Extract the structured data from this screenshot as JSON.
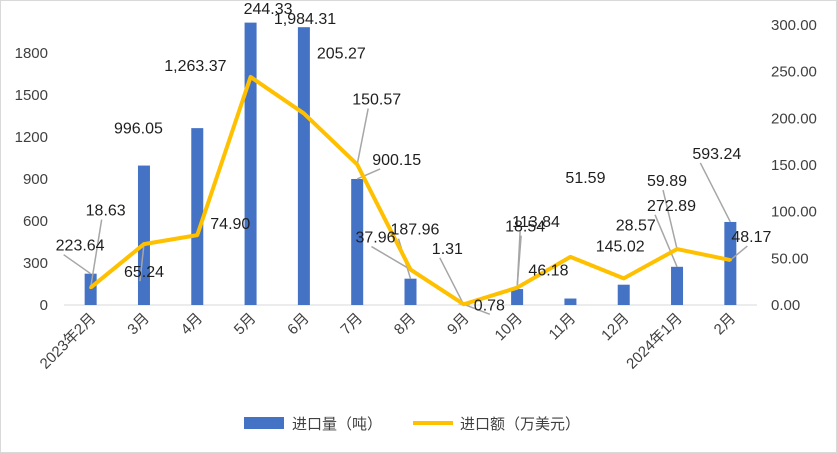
{
  "chart_data": {
    "type": "bar+line",
    "categories": [
      "2023年2月",
      "3月",
      "4月",
      "5月",
      "6月",
      "7月",
      "8月",
      "9月",
      "10月",
      "11月",
      "12月",
      "2024年1月",
      "2月"
    ],
    "series": [
      {
        "name": "进口量（吨）",
        "type": "bar",
        "axis": "left",
        "color": "#4472C4",
        "values": [
          223.64,
          996.05,
          1263.37,
          2017.0,
          1984.31,
          900.15,
          187.96,
          1.31,
          113.84,
          46.18,
          145.02,
          272.89,
          593.24
        ],
        "labels": [
          "223.64",
          "996.05",
          "1,263.37",
          "",
          "1,984.31",
          "900.15",
          "187.96",
          "1.31",
          "113.84",
          "46.18",
          "145.02",
          "272.89",
          "593.24"
        ]
      },
      {
        "name": "进口额（万美元）",
        "type": "line",
        "axis": "right",
        "color": "#FFC000",
        "values": [
          18.63,
          65.24,
          74.9,
          244.33,
          205.27,
          150.57,
          37.96,
          0.78,
          18.54,
          51.59,
          28.57,
          59.89,
          48.17
        ],
        "labels": [
          "18.63",
          "65.24",
          "74.90",
          "244.33",
          "205.27",
          "150.57",
          "37.96",
          "0.78",
          "18.54",
          "51.59",
          "28.57",
          "59.89",
          "48.17"
        ]
      }
    ],
    "y_left": {
      "min": 0,
      "max": 2000,
      "ticks": [
        "0",
        "300",
        "600",
        "900",
        "1200",
        "1500",
        "1800"
      ]
    },
    "y_right": {
      "min": 0,
      "max": 300,
      "ticks": [
        "0.00",
        "50.00",
        "100.00",
        "150.00",
        "200.00",
        "250.00",
        "300.00"
      ]
    },
    "grid": false,
    "legend_position": "bottom"
  }
}
